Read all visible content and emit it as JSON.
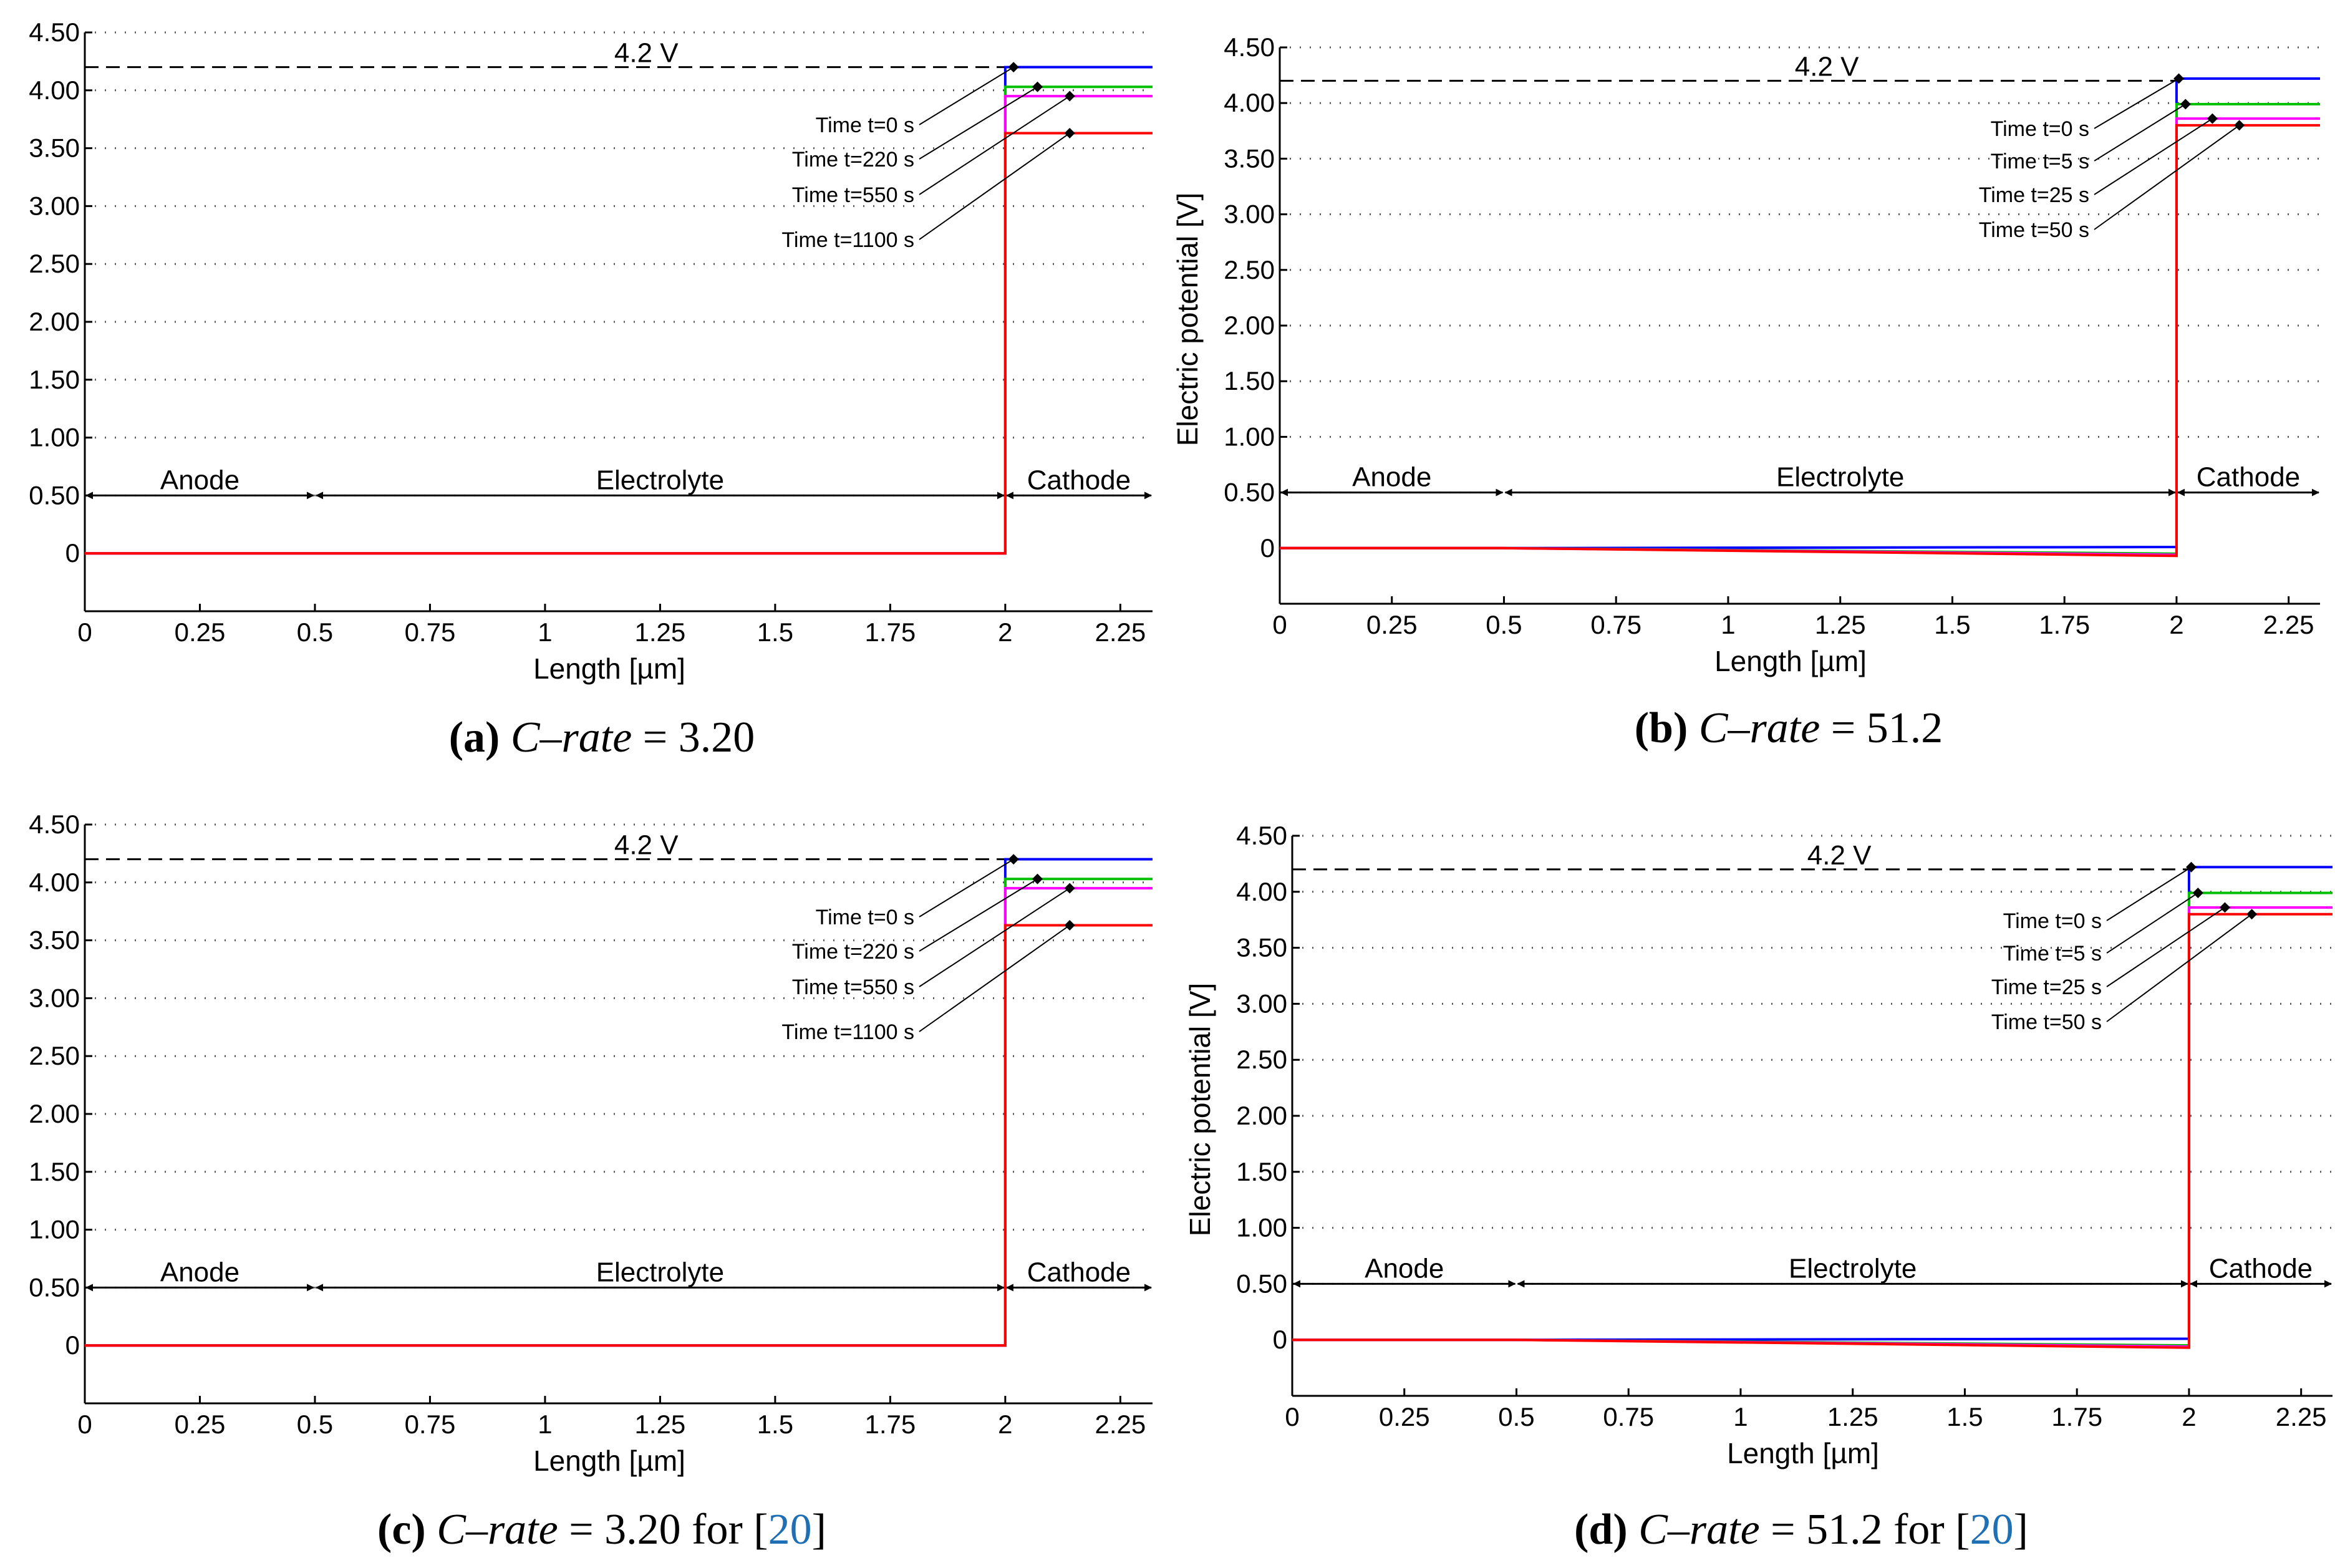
{
  "colors": {
    "t0": "#0000ff",
    "t1": "#00c000",
    "t2": "#ff00ff",
    "t3": "#ff0000",
    "grid": "#555555",
    "ref": "#1f6fb5"
  },
  "shared": {
    "xlabel": "Length [µm]",
    "ylabel": "Electric potential [V]",
    "voltage_label": "4.2 V",
    "regions": {
      "anode": "Anode",
      "electrolyte": "Electrolyte",
      "cathode": "Cathode"
    }
  },
  "chart_data": [
    {
      "type": "line",
      "panel": "a",
      "caption": {
        "label": "(a)",
        "italic": "C–rate",
        "rest": " = 3.20",
        "ref": ""
      },
      "show_ylabel": false,
      "xlim": [
        0,
        2.32
      ],
      "ylim": [
        -0.5,
        4.5
      ],
      "xticks": [
        0,
        0.25,
        0.5,
        0.75,
        1,
        1.25,
        1.5,
        1.75,
        2,
        2.25
      ],
      "xtick_labels": [
        "0",
        "0.25",
        "0.5",
        "0.75",
        "1",
        "1.25",
        "1.5",
        "1.75",
        "2",
        "2.25"
      ],
      "yticks": [
        0,
        0.5,
        1,
        1.5,
        2,
        2.5,
        3,
        3.5,
        4,
        4.5
      ],
      "ytick_labels": [
        "0",
        "0.50",
        "1.00",
        "1.50",
        "2.00",
        "2.50",
        "3.00",
        "3.50",
        "4.00",
        "4.50"
      ],
      "reference_voltage": 4.2,
      "region_bounds": [
        0,
        0.5,
        2,
        2.32
      ],
      "region_y": 0.5,
      "series": [
        {
          "name": "Time t=0 s",
          "cathode_value": 4.2,
          "electrolyte_end": 0.0
        },
        {
          "name": "Time t=220 s",
          "cathode_value": 4.03,
          "electrolyte_end": 0.0
        },
        {
          "name": "Time t=550 s",
          "cathode_value": 3.95,
          "electrolyte_end": 0.0
        },
        {
          "name": "Time t=1100 s",
          "cathode_value": 3.63,
          "electrolyte_end": 0.0
        }
      ]
    },
    {
      "type": "line",
      "panel": "b",
      "caption": {
        "label": "(b)",
        "italic": "C–rate",
        "rest": " = 51.2",
        "ref": ""
      },
      "show_ylabel": true,
      "xlim": [
        0,
        2.32
      ],
      "ylim": [
        -0.5,
        4.5
      ],
      "xticks": [
        0,
        0.25,
        0.5,
        0.75,
        1,
        1.25,
        1.5,
        1.75,
        2,
        2.25
      ],
      "xtick_labels": [
        "0",
        "0.25",
        "0.5",
        "0.75",
        "1",
        "1.25",
        "1.5",
        "1.75",
        "2",
        "2.25"
      ],
      "yticks": [
        0,
        0.5,
        1,
        1.5,
        2,
        2.5,
        3,
        3.5,
        4,
        4.5
      ],
      "ytick_labels": [
        "0",
        "0.50",
        "1.00",
        "1.50",
        "2.00",
        "2.50",
        "3.00",
        "3.50",
        "4.00",
        "4.50"
      ],
      "reference_voltage": 4.2,
      "region_bounds": [
        0,
        0.5,
        2,
        2.32
      ],
      "region_y": 0.5,
      "series": [
        {
          "name": "Time t=0 s",
          "cathode_value": 4.22,
          "electrolyte_end": 0.01
        },
        {
          "name": "Time t=5 s",
          "cathode_value": 3.99,
          "electrolyte_end": -0.05
        },
        {
          "name": "Time t=25 s",
          "cathode_value": 3.86,
          "electrolyte_end": -0.06
        },
        {
          "name": "Time t=50 s",
          "cathode_value": 3.8,
          "electrolyte_end": -0.07
        }
      ]
    },
    {
      "type": "line",
      "panel": "c",
      "caption": {
        "label": "(c)",
        "italic": "C–rate",
        "rest": " = 3.20 for [",
        "ref": "20"
      },
      "show_ylabel": false,
      "xlim": [
        0,
        2.32
      ],
      "ylim": [
        -0.5,
        4.5
      ],
      "xticks": [
        0,
        0.25,
        0.5,
        0.75,
        1,
        1.25,
        1.5,
        1.75,
        2,
        2.25
      ],
      "xtick_labels": [
        "0",
        "0.25",
        "0.5",
        "0.75",
        "1",
        "1.25",
        "1.5",
        "1.75",
        "2",
        "2.25"
      ],
      "yticks": [
        0,
        0.5,
        1,
        1.5,
        2,
        2.5,
        3,
        3.5,
        4,
        4.5
      ],
      "ytick_labels": [
        "0",
        "0.50",
        "1.00",
        "1.50",
        "2.00",
        "2.50",
        "3.00",
        "3.50",
        "4.00",
        "4.50"
      ],
      "reference_voltage": 4.2,
      "region_bounds": [
        0,
        0.5,
        2,
        2.32
      ],
      "region_y": 0.5,
      "series": [
        {
          "name": "Time t=0 s",
          "cathode_value": 4.2,
          "electrolyte_end": 0.0
        },
        {
          "name": "Time t=220 s",
          "cathode_value": 4.03,
          "electrolyte_end": 0.0
        },
        {
          "name": "Time t=550 s",
          "cathode_value": 3.95,
          "electrolyte_end": 0.0
        },
        {
          "name": "Time t=1100 s",
          "cathode_value": 3.63,
          "electrolyte_end": 0.0
        }
      ]
    },
    {
      "type": "line",
      "panel": "d",
      "caption": {
        "label": "(d)",
        "italic": "C–rate",
        "rest": " = 51.2 for [",
        "ref": "20"
      },
      "show_ylabel": true,
      "xlim": [
        0,
        2.32
      ],
      "ylim": [
        -0.5,
        4.5
      ],
      "xticks": [
        0,
        0.25,
        0.5,
        0.75,
        1,
        1.25,
        1.5,
        1.75,
        2,
        2.25
      ],
      "xtick_labels": [
        "0",
        "0.25",
        "0.5",
        "0.75",
        "1",
        "1.25",
        "1.5",
        "1.75",
        "2",
        "2.25"
      ],
      "yticks": [
        0,
        0.5,
        1,
        1.5,
        2,
        2.5,
        3,
        3.5,
        4,
        4.5
      ],
      "ytick_labels": [
        "0",
        "0.50",
        "1.00",
        "1.50",
        "2.00",
        "2.50",
        "3.00",
        "3.50",
        "4.00",
        "4.50"
      ],
      "reference_voltage": 4.2,
      "region_bounds": [
        0,
        0.5,
        2,
        2.32
      ],
      "region_y": 0.5,
      "series": [
        {
          "name": "Time t=0 s",
          "cathode_value": 4.22,
          "electrolyte_end": 0.01
        },
        {
          "name": "Time t=5 s",
          "cathode_value": 3.99,
          "electrolyte_end": -0.05
        },
        {
          "name": "Time t=25 s",
          "cathode_value": 3.86,
          "electrolyte_end": -0.06
        },
        {
          "name": "Time t=50 s",
          "cathode_value": 3.8,
          "electrolyte_end": -0.07
        }
      ]
    }
  ]
}
